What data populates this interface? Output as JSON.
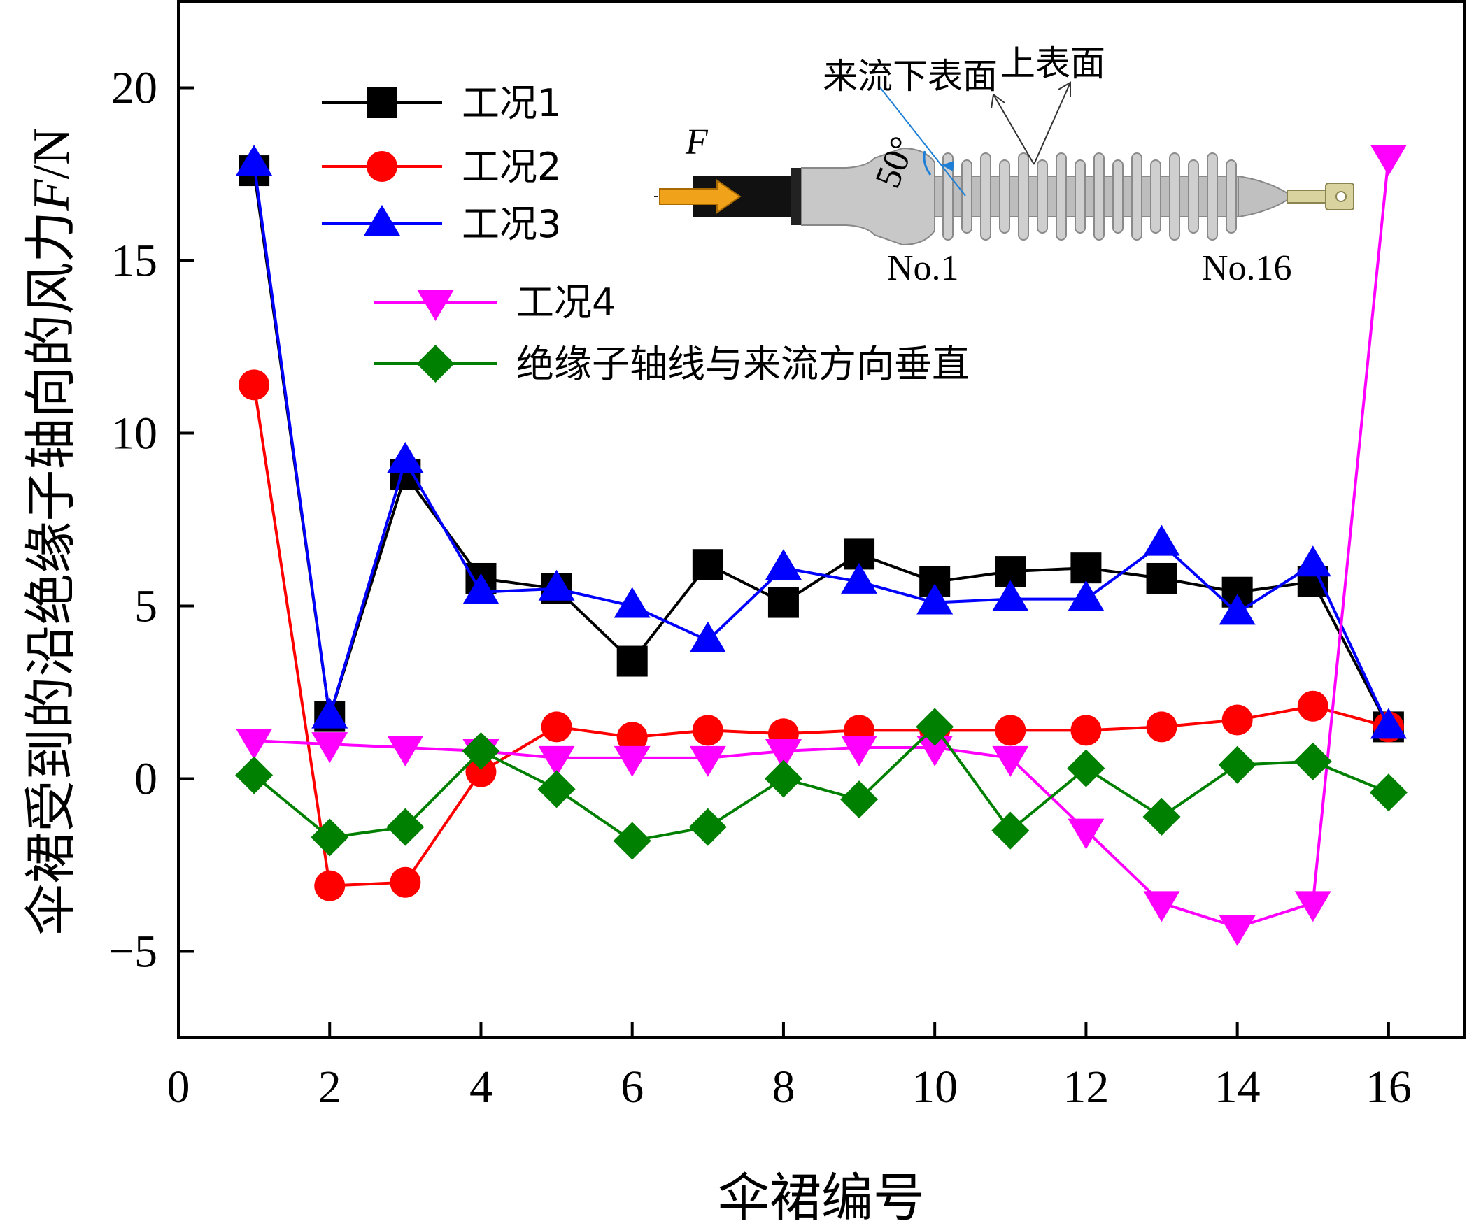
{
  "chart_data": {
    "type": "line",
    "xlabel": "伞裙编号",
    "ylabel_prefix": "伞裙受到的沿绝缘子轴向的风力",
    "ylabel_var": "F",
    "ylabel_unit": "/N",
    "xlim": [
      0,
      17
    ],
    "ylim": [
      -7.5,
      22.5
    ],
    "x_ticks": [
      0,
      2,
      4,
      6,
      8,
      10,
      12,
      14,
      16
    ],
    "y_ticks": [
      -5,
      0,
      5,
      10,
      15,
      20
    ],
    "x_tick_labels": [
      "0",
      "2",
      "4",
      "6",
      "8",
      "10",
      "12",
      "14",
      "16"
    ],
    "y_tick_labels": [
      "−5",
      "0",
      "5",
      "10",
      "15",
      "20"
    ],
    "x": [
      1,
      2,
      3,
      4,
      5,
      6,
      7,
      8,
      9,
      10,
      11,
      12,
      13,
      14,
      15,
      16
    ],
    "series": [
      {
        "name": "工况1",
        "color": "#000000",
        "marker": "square",
        "values": [
          17.6,
          1.8,
          8.8,
          5.8,
          5.5,
          3.4,
          6.2,
          5.1,
          6.5,
          5.7,
          6.0,
          6.1,
          5.8,
          5.4,
          5.7,
          1.5
        ]
      },
      {
        "name": "工况2",
        "color": "#ff0000",
        "marker": "circle",
        "values": [
          11.4,
          -3.1,
          -3.0,
          0.2,
          1.5,
          1.2,
          1.4,
          1.3,
          1.4,
          1.4,
          1.4,
          1.4,
          1.5,
          1.7,
          2.1,
          1.5
        ]
      },
      {
        "name": "工况3",
        "color": "#0000ff",
        "marker": "triangle-up",
        "values": [
          17.8,
          1.8,
          9.2,
          5.4,
          5.5,
          5.0,
          4.0,
          6.1,
          5.7,
          5.1,
          5.2,
          5.2,
          6.8,
          4.8,
          6.2,
          1.5
        ]
      },
      {
        "name": "工况4",
        "color": "#ff00ff",
        "marker": "triangle-down",
        "values": [
          1.1,
          1.0,
          0.9,
          0.8,
          0.6,
          0.6,
          0.6,
          0.8,
          0.9,
          0.9,
          0.6,
          -1.5,
          -3.6,
          -4.3,
          -3.6,
          18.0
        ]
      },
      {
        "name": "绝缘子轴线与来流方向垂直",
        "color": "#008000",
        "marker": "diamond",
        "values": [
          0.1,
          -1.7,
          -1.4,
          0.8,
          -0.3,
          -1.8,
          -1.4,
          0.0,
          -0.6,
          1.5,
          -1.5,
          0.3,
          -1.1,
          0.4,
          0.5,
          -0.4
        ]
      }
    ],
    "inset": {
      "force_label": "F",
      "angle_label": "50°",
      "windward_lower": "来流下表面",
      "upper_surface": "上表面",
      "shed_first": "No.1",
      "shed_last": "No.16"
    }
  }
}
